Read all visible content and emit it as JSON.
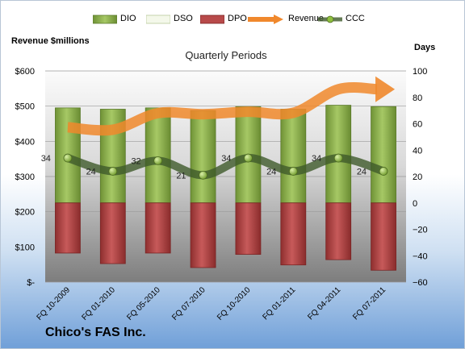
{
  "company": "Chico's FAS Inc.",
  "chart_data": {
    "type": "bar",
    "title": "Quarterly Periods",
    "ylabel_left": "Revenue $millions",
    "ylabel_right": "Days",
    "categories": [
      "FQ 10-2009",
      "FQ 01-2010",
      "FQ 05-2010",
      "FQ 07-2010",
      "FQ 10-2010",
      "FQ 01-2011",
      "FQ 04-2011",
      "FQ 07-2011"
    ],
    "left_axis": {
      "range": [
        0,
        600
      ],
      "ticks": [
        0,
        100,
        200,
        300,
        400,
        500,
        600
      ],
      "tick_labels": [
        "$-",
        "$100",
        "$200",
        "$300",
        "$400",
        "$500",
        "$600"
      ]
    },
    "right_axis": {
      "range": [
        -60,
        100
      ],
      "ticks": [
        -60,
        -40,
        -20,
        0,
        20,
        40,
        60,
        80,
        100
      ],
      "tick_labels": [
        "−60",
        "−40",
        "−20",
        "0",
        "20",
        "40",
        "60",
        "80",
        "100"
      ]
    },
    "grid": true,
    "legend_position": "top",
    "series": [
      {
        "name": "DIO",
        "type": "bar",
        "axis": "right",
        "values": [
          72,
          71,
          72,
          70,
          73,
          71,
          74,
          73
        ],
        "color": "#8cb04a"
      },
      {
        "name": "DSO",
        "type": "bar",
        "axis": "right",
        "values": [
          0,
          0,
          0,
          0,
          0,
          0,
          0,
          0
        ],
        "color": "#eef3e2"
      },
      {
        "name": "DPO",
        "type": "bar",
        "axis": "right",
        "values": [
          -38,
          -46,
          -38,
          -49,
          -39,
          -47,
          -43,
          -51
        ],
        "color": "#b84a4a"
      },
      {
        "name": "Revenue",
        "type": "line",
        "axis": "left",
        "values": [
          440,
          433,
          480,
          477,
          484,
          481,
          548,
          548
        ],
        "color": "#f0882c"
      },
      {
        "name": "CCC",
        "type": "line",
        "axis": "right",
        "values": [
          34,
          24,
          32,
          21,
          34,
          24,
          34,
          24
        ],
        "color": "#3e5a2a"
      }
    ],
    "data_labels": [
      "34",
      "24",
      "32",
      "21",
      "34",
      "24",
      "34",
      "24"
    ]
  }
}
